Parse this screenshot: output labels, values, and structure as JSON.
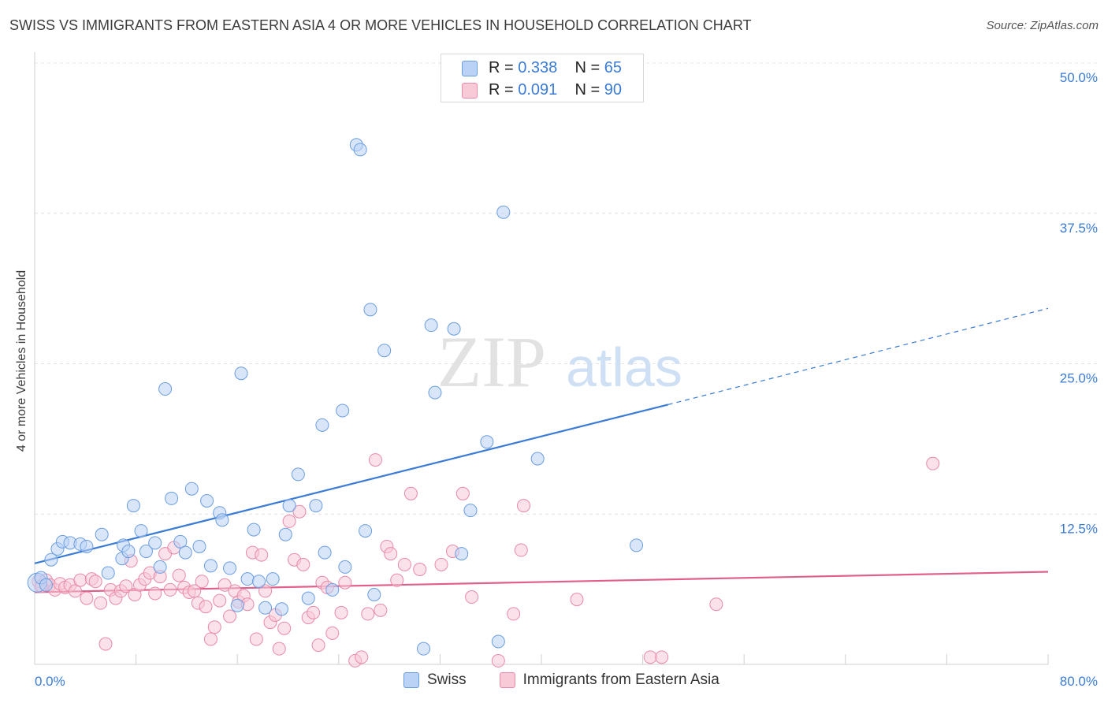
{
  "header": {
    "title": "SWISS VS IMMIGRANTS FROM EASTERN ASIA 4 OR MORE VEHICLES IN HOUSEHOLD CORRELATION CHART",
    "source": "Source: ZipAtlas.com"
  },
  "watermark": {
    "zip": "ZIP",
    "atlas": "atlas"
  },
  "legend": {
    "r_label": "R =",
    "n_label": "N =",
    "swiss": {
      "r": "0.338",
      "n": "65"
    },
    "immigrants": {
      "r": "0.091",
      "n": "90"
    }
  },
  "bottom_legend": {
    "swiss": "Swiss",
    "immigrants": "Immigrants from Eastern Asia"
  },
  "colors": {
    "swiss": "#3a7bd5",
    "immigrants": "#e0608a",
    "swiss_fill": "#b9d2f5",
    "immigrants_fill": "#f8c9d7"
  },
  "chart_data": {
    "type": "scatter",
    "title": "SWISS VS IMMIGRANTS FROM EASTERN ASIA 4 OR MORE VEHICLES IN HOUSEHOLD CORRELATION CHART",
    "xlabel": "",
    "ylabel": "4 or more Vehicles in Household",
    "xlim": [
      0,
      80
    ],
    "ylim": [
      0,
      50
    ],
    "x_tick_labels": [
      "0.0%",
      "80.0%"
    ],
    "y_ticks": [
      12.5,
      25.0,
      37.5,
      50.0
    ],
    "y_tick_labels": [
      "12.5%",
      "25.0%",
      "37.5%",
      "50.0%"
    ],
    "grid": true,
    "legend_position": "top-center",
    "series": [
      {
        "name": "Swiss",
        "color": "#3a7bd5",
        "trend": {
          "x": [
            0,
            50
          ],
          "y": [
            8.4,
            21.6
          ],
          "dashed_to": [
            80,
            29.6
          ]
        },
        "points": [
          [
            0.2,
            6.8
          ],
          [
            0.5,
            7.2
          ],
          [
            0.9,
            6.6
          ],
          [
            1.3,
            8.7
          ],
          [
            1.8,
            9.6
          ],
          [
            2.2,
            10.2
          ],
          [
            2.8,
            10.1
          ],
          [
            3.6,
            10.0
          ],
          [
            4.1,
            9.8
          ],
          [
            5.3,
            10.8
          ],
          [
            5.8,
            7.6
          ],
          [
            6.9,
            8.8
          ],
          [
            7.0,
            9.9
          ],
          [
            7.4,
            9.4
          ],
          [
            7.8,
            13.2
          ],
          [
            8.4,
            11.1
          ],
          [
            8.8,
            9.4
          ],
          [
            9.5,
            10.1
          ],
          [
            9.9,
            8.1
          ],
          [
            10.3,
            22.9
          ],
          [
            10.8,
            13.8
          ],
          [
            11.5,
            10.2
          ],
          [
            11.9,
            9.3
          ],
          [
            12.4,
            14.6
          ],
          [
            13.0,
            9.8
          ],
          [
            13.6,
            13.6
          ],
          [
            13.9,
            8.2
          ],
          [
            14.6,
            12.6
          ],
          [
            14.8,
            12.0
          ],
          [
            15.4,
            8.0
          ],
          [
            16.0,
            4.9
          ],
          [
            16.3,
            24.2
          ],
          [
            16.8,
            7.1
          ],
          [
            17.3,
            11.2
          ],
          [
            17.7,
            6.9
          ],
          [
            18.2,
            4.7
          ],
          [
            18.8,
            7.1
          ],
          [
            19.5,
            4.6
          ],
          [
            19.8,
            10.8
          ],
          [
            20.1,
            13.2
          ],
          [
            20.8,
            15.8
          ],
          [
            21.6,
            5.5
          ],
          [
            22.2,
            13.2
          ],
          [
            22.7,
            19.9
          ],
          [
            22.9,
            9.3
          ],
          [
            23.5,
            6.2
          ],
          [
            24.3,
            21.1
          ],
          [
            24.5,
            8.1
          ],
          [
            25.4,
            43.2
          ],
          [
            25.7,
            42.8
          ],
          [
            26.1,
            11.1
          ],
          [
            26.5,
            29.5
          ],
          [
            26.8,
            5.8
          ],
          [
            27.6,
            26.1
          ],
          [
            30.7,
            1.3
          ],
          [
            31.3,
            28.2
          ],
          [
            31.6,
            22.6
          ],
          [
            33.1,
            27.9
          ],
          [
            33.7,
            9.2
          ],
          [
            34.4,
            12.8
          ],
          [
            35.7,
            18.5
          ],
          [
            36.6,
            1.9
          ],
          [
            37.0,
            37.6
          ],
          [
            39.7,
            17.1
          ],
          [
            47.5,
            9.9
          ]
        ]
      },
      {
        "name": "Immigrants from Eastern Asia",
        "color": "#e0608a",
        "trend": {
          "x": [
            0,
            80
          ],
          "y": [
            6.0,
            7.7
          ]
        },
        "points": [
          [
            0.3,
            6.9
          ],
          [
            0.6,
            6.5
          ],
          [
            0.9,
            7.0
          ],
          [
            1.2,
            6.6
          ],
          [
            1.6,
            6.2
          ],
          [
            2.0,
            6.7
          ],
          [
            2.4,
            6.4
          ],
          [
            2.8,
            6.6
          ],
          [
            3.2,
            6.1
          ],
          [
            3.6,
            7.0
          ],
          [
            4.1,
            5.5
          ],
          [
            4.5,
            7.1
          ],
          [
            4.8,
            6.9
          ],
          [
            5.2,
            5.1
          ],
          [
            5.6,
            1.7
          ],
          [
            6.0,
            6.2
          ],
          [
            6.4,
            5.5
          ],
          [
            6.8,
            6.1
          ],
          [
            7.2,
            6.5
          ],
          [
            7.6,
            8.6
          ],
          [
            7.9,
            5.8
          ],
          [
            8.3,
            6.6
          ],
          [
            8.7,
            7.1
          ],
          [
            9.1,
            7.6
          ],
          [
            9.5,
            5.9
          ],
          [
            9.9,
            7.3
          ],
          [
            10.3,
            9.2
          ],
          [
            10.7,
            6.2
          ],
          [
            11.0,
            9.7
          ],
          [
            11.4,
            7.4
          ],
          [
            11.8,
            6.4
          ],
          [
            12.2,
            6.0
          ],
          [
            12.6,
            6.1
          ],
          [
            12.9,
            5.1
          ],
          [
            13.2,
            6.9
          ],
          [
            13.5,
            4.8
          ],
          [
            13.9,
            2.1
          ],
          [
            14.2,
            3.1
          ],
          [
            14.6,
            5.3
          ],
          [
            15.0,
            6.6
          ],
          [
            15.4,
            4.0
          ],
          [
            15.8,
            6.1
          ],
          [
            16.1,
            5.2
          ],
          [
            16.5,
            5.7
          ],
          [
            16.8,
            5.0
          ],
          [
            17.2,
            9.3
          ],
          [
            17.5,
            2.1
          ],
          [
            17.9,
            9.1
          ],
          [
            18.2,
            6.1
          ],
          [
            18.6,
            3.5
          ],
          [
            19.0,
            4.1
          ],
          [
            19.3,
            1.3
          ],
          [
            19.7,
            3.0
          ],
          [
            20.1,
            11.9
          ],
          [
            20.5,
            8.7
          ],
          [
            20.9,
            12.7
          ],
          [
            21.2,
            8.3
          ],
          [
            21.6,
            3.9
          ],
          [
            22.0,
            4.3
          ],
          [
            22.4,
            1.6
          ],
          [
            22.7,
            6.8
          ],
          [
            23.1,
            6.4
          ],
          [
            23.5,
            2.6
          ],
          [
            24.2,
            4.3
          ],
          [
            24.5,
            6.8
          ],
          [
            25.3,
            0.3
          ],
          [
            25.8,
            0.6
          ],
          [
            26.3,
            4.2
          ],
          [
            26.9,
            17.0
          ],
          [
            27.3,
            4.5
          ],
          [
            27.8,
            9.8
          ],
          [
            28.1,
            9.2
          ],
          [
            28.6,
            7.0
          ],
          [
            29.2,
            8.3
          ],
          [
            29.7,
            14.2
          ],
          [
            30.4,
            7.9
          ],
          [
            32.1,
            8.3
          ],
          [
            33.0,
            9.4
          ],
          [
            33.8,
            14.2
          ],
          [
            34.5,
            5.6
          ],
          [
            36.6,
            0.3
          ],
          [
            37.8,
            4.2
          ],
          [
            38.4,
            9.5
          ],
          [
            38.6,
            13.2
          ],
          [
            42.8,
            5.4
          ],
          [
            48.6,
            0.6
          ],
          [
            49.5,
            0.6
          ],
          [
            53.8,
            5.0
          ],
          [
            70.9,
            16.7
          ],
          [
            0.5,
            6.5
          ]
        ]
      }
    ]
  }
}
